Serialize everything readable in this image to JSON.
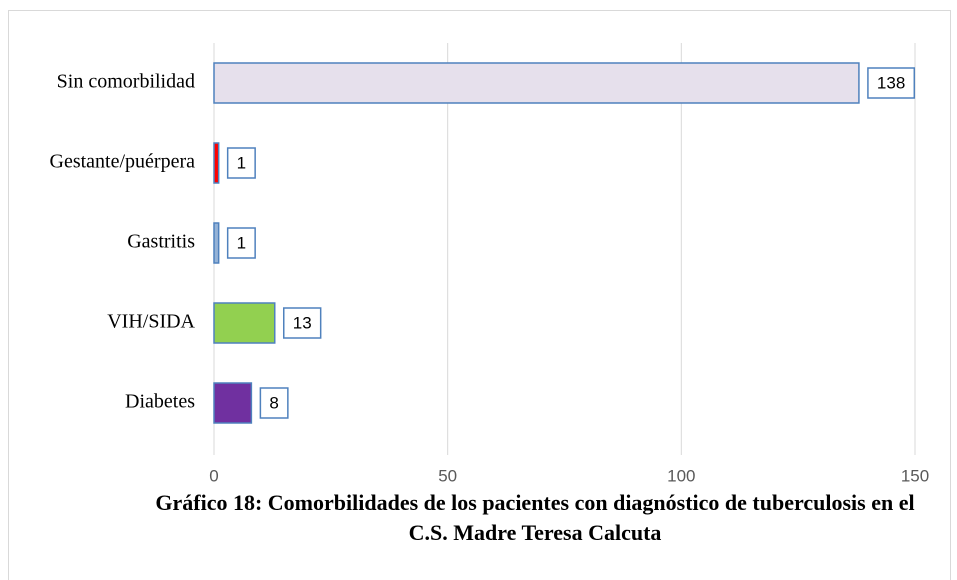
{
  "chart_data": {
    "type": "barh",
    "title": "Gráfico 18: Comorbilidades de los pacientes con diagnóstico de tuberculosis en el C.S. Madre Teresa Calcuta",
    "categories": [
      "Sin comorbilidad",
      "Gestante/puérpera",
      "Gastritis",
      "VIH/SIDA",
      "Diabetes"
    ],
    "values": [
      138,
      1,
      1,
      13,
      8
    ],
    "colors": [
      "#e6e0ec",
      "#ff0000",
      "#95b3d7",
      "#92d050",
      "#7030a0"
    ],
    "xlim": [
      0,
      150
    ],
    "xticks": [
      0,
      50,
      100,
      150
    ],
    "grid": true
  }
}
